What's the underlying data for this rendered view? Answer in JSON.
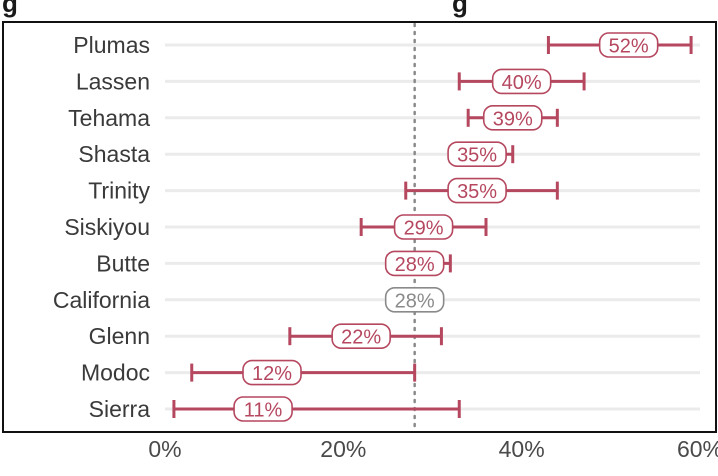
{
  "header_fragment": {
    "left": "g",
    "middle": "g"
  },
  "chart_data": {
    "type": "errorbar",
    "title": "",
    "xlabel": "",
    "ylabel": "",
    "xlim": [
      0,
      60
    ],
    "x_ticks": [
      0,
      20,
      40,
      60
    ],
    "x_tick_labels": [
      "0%",
      "20%",
      "40%",
      "60%"
    ],
    "reference_line": {
      "value": 28,
      "style": "dotted"
    },
    "grid": true,
    "colors": {
      "series": "#b5475f",
      "reference": "#8a8a8a",
      "grid": "#ebebeb",
      "frame": "#111111"
    },
    "categories": [
      "Plumas",
      "Lassen",
      "Tehama",
      "Shasta",
      "Trinity",
      "Siskiyou",
      "Butte",
      "California",
      "Glenn",
      "Modoc",
      "Sierra"
    ],
    "points": [
      {
        "category": "Plumas",
        "value": 52,
        "low": 43,
        "high": 59,
        "label": "52%",
        "reference": false
      },
      {
        "category": "Lassen",
        "value": 40,
        "low": 33,
        "high": 47,
        "label": "40%",
        "reference": false
      },
      {
        "category": "Tehama",
        "value": 39,
        "low": 34,
        "high": 44,
        "label": "39%",
        "reference": false
      },
      {
        "category": "Shasta",
        "value": 35,
        "low": 32,
        "high": 39,
        "label": "35%",
        "reference": false
      },
      {
        "category": "Trinity",
        "value": 35,
        "low": 27,
        "high": 44,
        "label": "35%",
        "reference": false
      },
      {
        "category": "Siskiyou",
        "value": 29,
        "low": 22,
        "high": 36,
        "label": "29%",
        "reference": false
      },
      {
        "category": "Butte",
        "value": 28,
        "low": 25,
        "high": 32,
        "label": "28%",
        "reference": false
      },
      {
        "category": "California",
        "value": 28,
        "low": 28,
        "high": 28,
        "label": "28%",
        "reference": true
      },
      {
        "category": "Glenn",
        "value": 22,
        "low": 14,
        "high": 31,
        "label": "22%",
        "reference": false
      },
      {
        "category": "Modoc",
        "value": 12,
        "low": 3,
        "high": 28,
        "label": "12%",
        "reference": false
      },
      {
        "category": "Sierra",
        "value": 11,
        "low": 1,
        "high": 33,
        "label": "11%",
        "reference": false
      }
    ]
  }
}
